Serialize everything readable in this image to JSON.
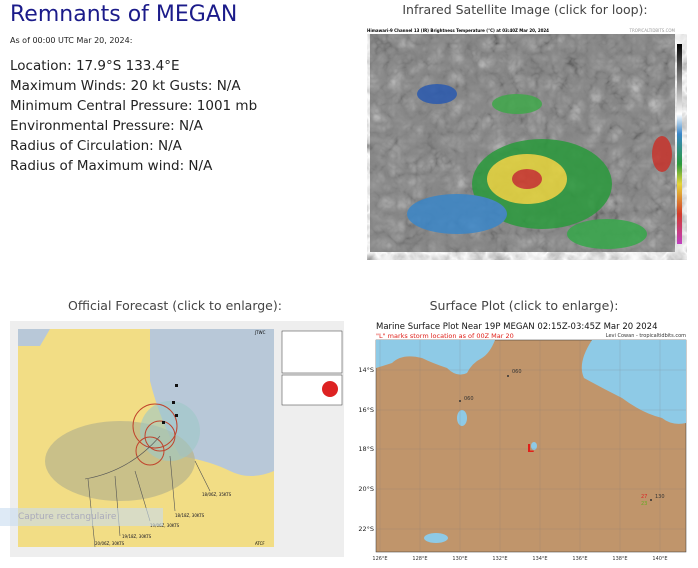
{
  "storm": {
    "title": "Remnants of MEGAN",
    "as_of": "As of 00:00 UTC Mar 20, 2024:",
    "lines": [
      "Location: 17.9°S 133.4°E",
      "Maximum Winds: 20 kt  Gusts: N/A",
      "Minimum Central Pressure: 1001 mb",
      "Environmental Pressure: N/A",
      "Radius of Circulation: N/A",
      "Radius of Maximum wind: N/A"
    ]
  },
  "satellite": {
    "heading": "Infrared Satellite Image (click for loop):",
    "image_title": "Himawari-9 Channel 13 (IR) Brightness Temperature (°C) at 03:40Z Mar 20, 2024",
    "credit": "TROPICALTIDBITS.COM"
  },
  "forecast": {
    "heading": "Official Forecast (click to enlarge):",
    "agency": "JTWC",
    "footer": "ATCF",
    "labels": [
      "18/06Z, 35KTS",
      "18/18Z, 30KTS",
      "19/06Z, 30KTS",
      "19/18Z, 30KTS",
      "20/06Z, 30KTS"
    ],
    "overlay": "Capture rectangulaire"
  },
  "surface": {
    "heading": "Surface Plot (click to enlarge):",
    "title": "Marine Surface Plot Near 19P MEGAN 02:15Z-03:45Z Mar 20 2024",
    "subtitle": "\"L\" marks storm location as of 00Z Mar 20",
    "credit": "Levi Cowan - tropicaltidbits.com",
    "lat_labels": [
      "14°S",
      "16°S",
      "18°S",
      "20°S",
      "22°S"
    ],
    "lon_labels": [
      "126°E",
      "128°E",
      "130°E",
      "132°E",
      "134°E",
      "136°E",
      "138°E",
      "140°E"
    ],
    "stations": [
      "060",
      "060",
      "130",
      "27",
      "23"
    ],
    "storm_marker": "L",
    "colors": {
      "land": "#c0956b",
      "sea": "#8ecae6",
      "marker": "#e0201a"
    }
  }
}
